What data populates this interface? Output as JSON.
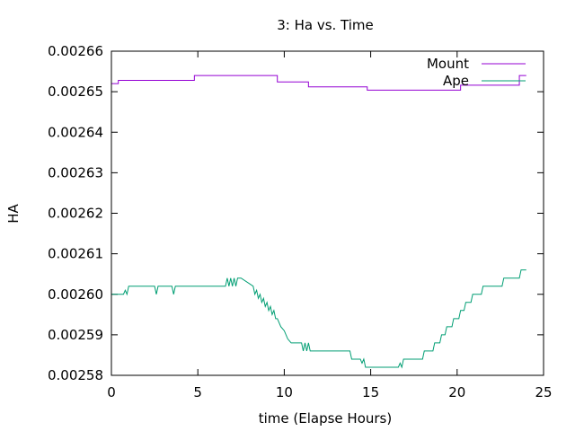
{
  "chart_data": {
    "type": "line",
    "title": "3: Ha vs. Time",
    "xlabel": "time (Elapse Hours)",
    "ylabel": "HA",
    "xlim": [
      0,
      25
    ],
    "ylim": [
      0.00258,
      0.00266
    ],
    "x_ticks": [
      0,
      5,
      10,
      15,
      20,
      25
    ],
    "x_tick_labels": [
      "0",
      "5",
      "10",
      "15",
      "20",
      "25"
    ],
    "y_ticks": [
      0.00258,
      0.00259,
      0.0026,
      0.00261,
      0.00262,
      0.00263,
      0.00264,
      0.00265,
      0.00266
    ],
    "y_tick_labels": [
      "0.00258",
      "0.00259",
      "0.00260",
      "0.00261",
      "0.00262",
      "0.00263",
      "0.00264",
      "0.00265",
      "0.00266"
    ],
    "grid": false,
    "legend_position": "top-right",
    "series": [
      {
        "name": "Mount",
        "color": "#9400d3",
        "x": [
          0.0,
          0.4,
          0.4,
          4.8,
          4.8,
          9.6,
          9.6,
          11.4,
          11.4,
          14.8,
          14.8,
          20.2,
          20.2,
          23.6,
          23.6,
          24.0
        ],
        "y": [
          0.002652,
          0.002652,
          0.0026528,
          0.0026528,
          0.002654,
          0.002654,
          0.0026524,
          0.0026524,
          0.0026512,
          0.0026512,
          0.0026504,
          0.0026504,
          0.0026516,
          0.0026516,
          0.002654,
          0.002654
        ]
      },
      {
        "name": "Ape",
        "color": "#009e73",
        "x": [
          0.0,
          0.7,
          0.8,
          0.9,
          1.0,
          1.1,
          2.5,
          2.6,
          2.7,
          3.5,
          3.6,
          3.7,
          6.6,
          6.7,
          6.8,
          6.9,
          7.0,
          7.1,
          7.2,
          7.3,
          7.4,
          7.5,
          8.2,
          8.3,
          8.4,
          8.5,
          8.6,
          8.7,
          8.8,
          8.9,
          9.0,
          9.1,
          9.2,
          9.3,
          9.4,
          9.5,
          9.6,
          9.8,
          10.0,
          10.2,
          10.4,
          10.6,
          10.8,
          11.0,
          11.1,
          11.2,
          11.3,
          11.4,
          11.5,
          11.6,
          11.7,
          13.8,
          13.9,
          14.0,
          14.1,
          14.4,
          14.5,
          14.6,
          14.7,
          14.8,
          15.0,
          16.6,
          16.7,
          16.8,
          16.9,
          17.0,
          17.1,
          18.0,
          18.1,
          18.6,
          18.7,
          19.0,
          19.1,
          19.3,
          19.4,
          19.7,
          19.8,
          20.1,
          20.2,
          20.4,
          20.5,
          20.8,
          20.9,
          21.4,
          21.5,
          21.6,
          22.2,
          22.3,
          22.6,
          22.7,
          23.0,
          23.1,
          23.6,
          23.7,
          23.8,
          24.0
        ],
        "y": [
          0.0026,
          0.0026,
          0.002601,
          0.0026,
          0.002602,
          0.002602,
          0.002602,
          0.0026,
          0.002602,
          0.002602,
          0.0026,
          0.002602,
          0.002602,
          0.002604,
          0.002602,
          0.002604,
          0.002602,
          0.002604,
          0.002602,
          0.002604,
          0.002604,
          0.002604,
          0.002602,
          0.0026,
          0.002601,
          0.002599,
          0.0026,
          0.002598,
          0.002599,
          0.002597,
          0.002598,
          0.002596,
          0.002597,
          0.002595,
          0.002596,
          0.002594,
          0.002594,
          0.002592,
          0.002591,
          0.002589,
          0.002588,
          0.002588,
          0.002588,
          0.002588,
          0.002586,
          0.002588,
          0.002586,
          0.002588,
          0.002586,
          0.002586,
          0.002586,
          0.002586,
          0.002584,
          0.002584,
          0.002584,
          0.002584,
          0.002583,
          0.002584,
          0.002582,
          0.002582,
          0.002582,
          0.002582,
          0.002583,
          0.002582,
          0.002584,
          0.002584,
          0.002584,
          0.002584,
          0.002586,
          0.002586,
          0.002588,
          0.002588,
          0.00259,
          0.00259,
          0.002592,
          0.002592,
          0.002594,
          0.002594,
          0.002596,
          0.002596,
          0.002598,
          0.002598,
          0.0026,
          0.0026,
          0.002602,
          0.002602,
          0.002602,
          0.002602,
          0.002602,
          0.002604,
          0.002604,
          0.002604,
          0.002604,
          0.002606,
          0.002606,
          0.002606
        ]
      }
    ]
  }
}
